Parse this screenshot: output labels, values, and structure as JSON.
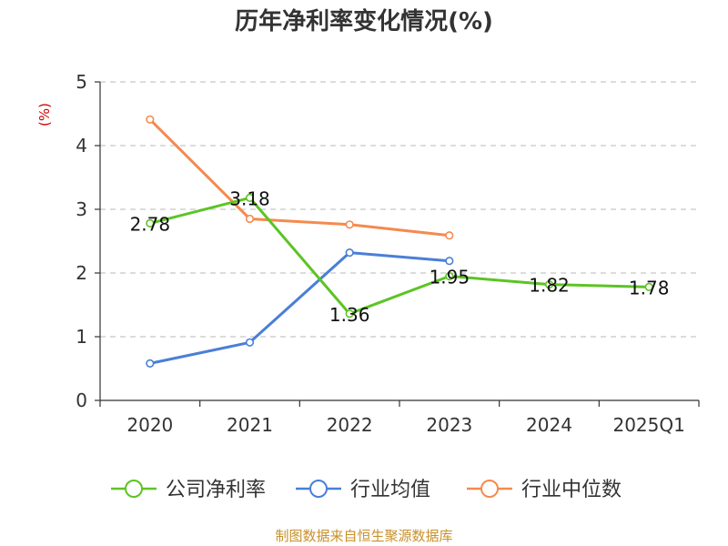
{
  "chart_data": {
    "type": "line",
    "title": "历年净利率变化情况(%)",
    "y_unit": "(%)",
    "categories": [
      "2020",
      "2021",
      "2022",
      "2023",
      "2024",
      "2025Q1"
    ],
    "ylim": [
      0,
      5
    ],
    "y_ticks": [
      0,
      1,
      2,
      3,
      4,
      5
    ],
    "grid": true,
    "legend_position": "bottom",
    "series": [
      {
        "name": "公司净利率",
        "color": "#5cc424",
        "values": [
          2.78,
          3.18,
          1.36,
          1.95,
          1.82,
          1.78
        ],
        "labels": [
          "2.78",
          "3.18",
          "1.36",
          "1.95",
          "1.82",
          "1.78"
        ]
      },
      {
        "name": "行业均值",
        "color": "#4a7fd6",
        "values": [
          0.58,
          0.91,
          2.32,
          2.19,
          null,
          null
        ]
      },
      {
        "name": "行业中位数",
        "color": "#f58a4e",
        "values": [
          4.41,
          2.85,
          2.76,
          2.59,
          null,
          null
        ]
      }
    ],
    "unit_color": "#cc0000",
    "source": "制图数据来自恒生聚源数据库",
    "source_color": "#c8902a"
  }
}
